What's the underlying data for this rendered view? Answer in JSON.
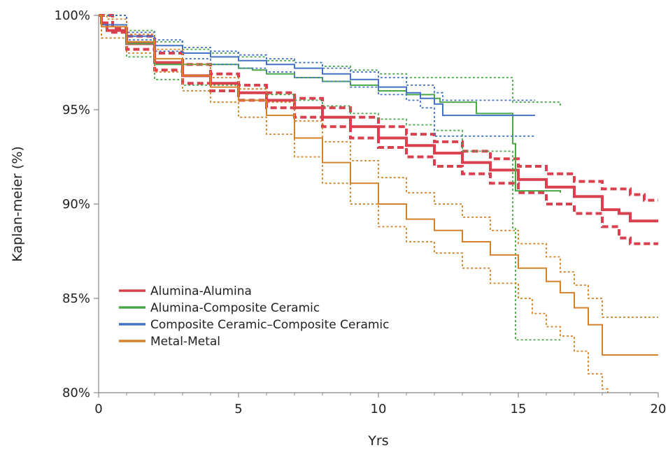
{
  "chart_data": {
    "type": "line",
    "title": "",
    "xlabel": "Yrs",
    "ylabel": "Kaplan-meier (%)",
    "xlim": [
      0,
      20
    ],
    "ylim": [
      80,
      100
    ],
    "x_ticks": [
      0,
      5,
      10,
      15,
      20
    ],
    "x_tick_labels": [
      "0",
      "5",
      "10",
      "15",
      "20"
    ],
    "y_ticks": [
      80,
      85,
      90,
      95,
      100
    ],
    "y_tick_labels": [
      "80%",
      "85%",
      "90%",
      "95%",
      "100%"
    ],
    "grid": false,
    "legend_position": "bottom-left",
    "series": [
      {
        "name": "Alumina-Alumina",
        "color": "#d9414f",
        "estimate": [
          [
            0,
            100
          ],
          [
            0.1,
            99.6
          ],
          [
            0.3,
            99.2
          ],
          [
            1,
            98.5
          ],
          [
            2,
            97.5
          ],
          [
            3,
            96.8
          ],
          [
            4,
            96.4
          ],
          [
            5,
            95.9
          ],
          [
            6,
            95.5
          ],
          [
            7,
            95.1
          ],
          [
            8,
            94.6
          ],
          [
            9,
            94.1
          ],
          [
            10,
            93.5
          ],
          [
            11,
            93.1
          ],
          [
            12,
            92.7
          ],
          [
            13,
            92.2
          ],
          [
            14,
            91.8
          ],
          [
            15,
            91.3
          ],
          [
            16,
            90.9
          ],
          [
            17,
            90.4
          ],
          [
            18,
            89.7
          ],
          [
            18.6,
            89.5
          ],
          [
            19,
            89.1
          ],
          [
            20,
            89.1
          ]
        ],
        "ci_upper": [
          [
            0,
            100
          ],
          [
            0.5,
            99.3
          ],
          [
            1,
            98.9
          ],
          [
            2,
            98.0
          ],
          [
            3,
            97.4
          ],
          [
            4,
            96.9
          ],
          [
            5,
            96.3
          ],
          [
            6,
            95.9
          ],
          [
            7,
            95.6
          ],
          [
            8,
            95.1
          ],
          [
            9,
            94.6
          ],
          [
            10,
            94.1
          ],
          [
            11,
            93.7
          ],
          [
            12,
            93.3
          ],
          [
            13,
            92.8
          ],
          [
            14,
            92.4
          ],
          [
            15,
            92.0
          ],
          [
            16,
            91.6
          ],
          [
            17,
            91.2
          ],
          [
            18,
            90.8
          ],
          [
            19,
            90.5
          ],
          [
            19.5,
            90.2
          ],
          [
            20,
            90.2
          ]
        ],
        "ci_lower": [
          [
            0,
            100
          ],
          [
            0.5,
            99.1
          ],
          [
            1,
            98.2
          ],
          [
            2,
            97.1
          ],
          [
            3,
            96.4
          ],
          [
            4,
            96.0
          ],
          [
            5,
            95.5
          ],
          [
            6,
            95.1
          ],
          [
            7,
            94.6
          ],
          [
            8,
            94.1
          ],
          [
            9,
            93.5
          ],
          [
            10,
            93.0
          ],
          [
            11,
            92.5
          ],
          [
            12,
            92.0
          ],
          [
            13,
            91.6
          ],
          [
            14,
            91.1
          ],
          [
            15,
            90.6
          ],
          [
            16,
            90.0
          ],
          [
            17,
            89.5
          ],
          [
            18,
            88.8
          ],
          [
            18.6,
            88.2
          ],
          [
            19,
            87.9
          ],
          [
            20,
            87.9
          ]
        ]
      },
      {
        "name": "Alumina-Composite Ceramic",
        "color": "#4aa74a",
        "estimate": [
          [
            0,
            100
          ],
          [
            0.1,
            99.5
          ],
          [
            1,
            98.5
          ],
          [
            2,
            97.4
          ],
          [
            4,
            97.4
          ],
          [
            5,
            97.2
          ],
          [
            5.5,
            97.1
          ],
          [
            6,
            96.9
          ],
          [
            7,
            96.7
          ],
          [
            8,
            96.5
          ],
          [
            9,
            96.3
          ],
          [
            10,
            96.0
          ],
          [
            11,
            95.8
          ],
          [
            12,
            95.6
          ],
          [
            12.2,
            95.4
          ],
          [
            13,
            95.4
          ],
          [
            13.5,
            94.8
          ],
          [
            14,
            94.8
          ],
          [
            14.8,
            94.8
          ],
          [
            14.8,
            93.2
          ],
          [
            14.9,
            93.2
          ],
          [
            14.9,
            90.7
          ],
          [
            16.5,
            90.6
          ]
        ],
        "ci_upper": [
          [
            0,
            100
          ],
          [
            1,
            99.2
          ],
          [
            2,
            98.6
          ],
          [
            3,
            98.2
          ],
          [
            4,
            98.0
          ],
          [
            5,
            97.8
          ],
          [
            6,
            97.6
          ],
          [
            7,
            97.5
          ],
          [
            8,
            97.3
          ],
          [
            9,
            97.1
          ],
          [
            10,
            96.9
          ],
          [
            11,
            96.7
          ],
          [
            12,
            96.7
          ],
          [
            13,
            96.7
          ],
          [
            14,
            96.7
          ],
          [
            14.8,
            96.4
          ],
          [
            14.8,
            95.4
          ],
          [
            16.5,
            95.2
          ]
        ],
        "ci_lower": [
          [
            0,
            100
          ],
          [
            0.1,
            98.8
          ],
          [
            1,
            97.8
          ],
          [
            2,
            96.6
          ],
          [
            3,
            96.3
          ],
          [
            4,
            96.3
          ],
          [
            5,
            96.1
          ],
          [
            6,
            95.8
          ],
          [
            7,
            95.5
          ],
          [
            8,
            95.2
          ],
          [
            9,
            94.8
          ],
          [
            10,
            94.5
          ],
          [
            11,
            94.2
          ],
          [
            12,
            93.9
          ],
          [
            13,
            92.8
          ],
          [
            14,
            92.8
          ],
          [
            14.8,
            92.8
          ],
          [
            14.8,
            88.7
          ],
          [
            14.9,
            88.7
          ],
          [
            14.9,
            82.8
          ],
          [
            16.5,
            82.8
          ]
        ]
      },
      {
        "name": "Composite Ceramic–Composite Ceramic",
        "color": "#4472c4",
        "estimate": [
          [
            0,
            100
          ],
          [
            0.1,
            99.5
          ],
          [
            1,
            98.9
          ],
          [
            2,
            98.4
          ],
          [
            3,
            98.0
          ],
          [
            4,
            97.8
          ],
          [
            5,
            97.6
          ],
          [
            6,
            97.4
          ],
          [
            7,
            97.2
          ],
          [
            8,
            96.9
          ],
          [
            9,
            96.6
          ],
          [
            10,
            96.2
          ],
          [
            11,
            95.9
          ],
          [
            11.5,
            95.6
          ],
          [
            12,
            95.3
          ],
          [
            12.3,
            94.7
          ],
          [
            15.6,
            94.7
          ]
        ],
        "ci_upper": [
          [
            0,
            100
          ],
          [
            1,
            99.1
          ],
          [
            2,
            98.7
          ],
          [
            3,
            98.3
          ],
          [
            4,
            98.1
          ],
          [
            5,
            97.9
          ],
          [
            6,
            97.7
          ],
          [
            7,
            97.5
          ],
          [
            8,
            97.2
          ],
          [
            9,
            97.0
          ],
          [
            10,
            96.7
          ],
          [
            11,
            96.3
          ],
          [
            12,
            95.9
          ],
          [
            12.3,
            95.5
          ],
          [
            15.6,
            95.5
          ]
        ],
        "ci_lower": [
          [
            0,
            100
          ],
          [
            1,
            98.7
          ],
          [
            2,
            98.1
          ],
          [
            3,
            97.7
          ],
          [
            4,
            97.4
          ],
          [
            5,
            97.2
          ],
          [
            6,
            97.0
          ],
          [
            7,
            96.7
          ],
          [
            8,
            96.5
          ],
          [
            9,
            96.2
          ],
          [
            10,
            95.8
          ],
          [
            11,
            95.5
          ],
          [
            11.5,
            95.1
          ],
          [
            12,
            94.4
          ],
          [
            12,
            93.6
          ],
          [
            15.6,
            93.6
          ]
        ]
      },
      {
        "name": "Metal-Metal",
        "color": "#d4822a",
        "estimate": [
          [
            0,
            100
          ],
          [
            0.1,
            99.4
          ],
          [
            1,
            98.6
          ],
          [
            2,
            97.7
          ],
          [
            3,
            96.8
          ],
          [
            4,
            96.2
          ],
          [
            5,
            95.5
          ],
          [
            6,
            94.7
          ],
          [
            7,
            93.5
          ],
          [
            8,
            92.2
          ],
          [
            9,
            91.1
          ],
          [
            10,
            90.0
          ],
          [
            11,
            89.2
          ],
          [
            12,
            88.6
          ],
          [
            13,
            88.0
          ],
          [
            14,
            87.3
          ],
          [
            15,
            86.6
          ],
          [
            16,
            85.9
          ],
          [
            16.5,
            85.3
          ],
          [
            17,
            84.5
          ],
          [
            17.5,
            83.6
          ],
          [
            18,
            82.0
          ],
          [
            20,
            82.0
          ]
        ],
        "ci_upper": [
          [
            0,
            100
          ],
          [
            0.3,
            99.8
          ],
          [
            1,
            99.0
          ],
          [
            2,
            98.2
          ],
          [
            3,
            97.4
          ],
          [
            4,
            96.7
          ],
          [
            5,
            96.1
          ],
          [
            6,
            95.4
          ],
          [
            7,
            94.4
          ],
          [
            8,
            93.3
          ],
          [
            9,
            92.3
          ],
          [
            10,
            91.4
          ],
          [
            11,
            90.6
          ],
          [
            12,
            90.0
          ],
          [
            13,
            89.3
          ],
          [
            14,
            88.6
          ],
          [
            15,
            87.9
          ],
          [
            16,
            87.2
          ],
          [
            16.5,
            86.4
          ],
          [
            17,
            85.7
          ],
          [
            17.5,
            85.0
          ],
          [
            18,
            84.0
          ],
          [
            20,
            84.0
          ]
        ],
        "ci_lower": [
          [
            0,
            100
          ],
          [
            0.1,
            98.8
          ],
          [
            1,
            98.0
          ],
          [
            2,
            97.0
          ],
          [
            3,
            96.0
          ],
          [
            4,
            95.4
          ],
          [
            5,
            94.6
          ],
          [
            6,
            93.7
          ],
          [
            7,
            92.5
          ],
          [
            8,
            91.1
          ],
          [
            9,
            90.0
          ],
          [
            10,
            88.8
          ],
          [
            11,
            88.0
          ],
          [
            12,
            87.4
          ],
          [
            13,
            86.6
          ],
          [
            14,
            85.8
          ],
          [
            15,
            85.0
          ],
          [
            15.5,
            84.2
          ],
          [
            16,
            83.5
          ],
          [
            16.5,
            83.0
          ],
          [
            17,
            82.2
          ],
          [
            17.5,
            81.0
          ],
          [
            18,
            80.2
          ],
          [
            18.2,
            79.9
          ]
        ]
      }
    ]
  }
}
